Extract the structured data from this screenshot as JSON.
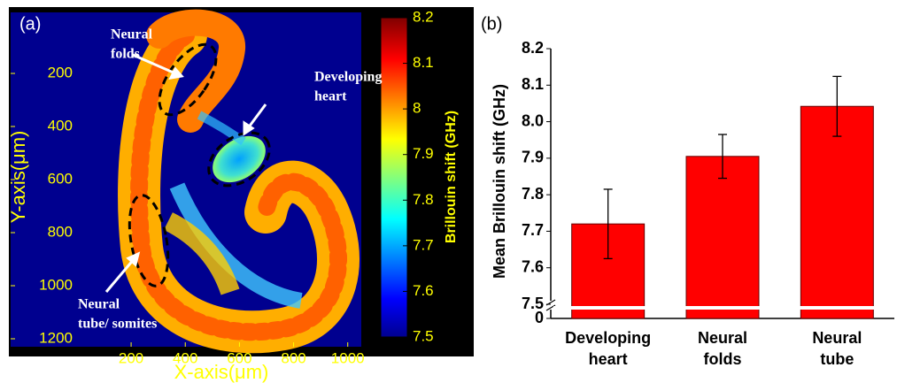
{
  "chart_data": [
    {
      "type": "heatmap",
      "panel_label": "(a)",
      "xlabel": "X-axis(μm)",
      "ylabel": "Y-axis(μm)",
      "xlim": [
        -245,
        1050
      ],
      "xticks": [
        200,
        400,
        600,
        800,
        1000
      ],
      "ylim": [
        1230,
        -30
      ],
      "yticks": [
        200,
        400,
        600,
        800,
        1000,
        1200
      ],
      "colorbar": {
        "label": "Brillouin shift (GHz)",
        "lim": [
          7.5,
          8.2
        ],
        "ticks": [
          7.5,
          7.6,
          7.7,
          7.8,
          7.9,
          8,
          8.1,
          8.2
        ]
      },
      "annotations": [
        {
          "lines": [
            "Neural",
            "folds"
          ]
        },
        {
          "lines": [
            "Developing",
            "heart"
          ]
        },
        {
          "lines": [
            "Neural",
            "tube/ somites"
          ]
        }
      ]
    },
    {
      "type": "bar",
      "panel_label": "(b)",
      "ylabel": "Mean Brillouin shift (GHz)",
      "categories": [
        [
          "Developing",
          "heart"
        ],
        [
          "Neural",
          "folds"
        ],
        [
          "Neural",
          "tube"
        ]
      ],
      "values": [
        7.72,
        7.905,
        8.042
      ],
      "errors": [
        0.095,
        0.06,
        0.082
      ],
      "color": "#ff0000",
      "ylim": [
        0,
        8.2
      ],
      "y_break": [
        0,
        7.5
      ],
      "yticks": [
        0,
        {
          "value": 7.5,
          "label": "7.5"
        },
        {
          "value": 7.6,
          "label": "7.6"
        },
        {
          "value": 7.7,
          "label": "7.7"
        },
        {
          "value": 7.8,
          "label": "7.8"
        },
        {
          "value": 7.9,
          "label": "7.9"
        },
        {
          "value": 8,
          "label": "8.0"
        },
        {
          "value": 8.1,
          "label": "8.1"
        },
        {
          "value": 8.2,
          "label": "8.2"
        }
      ]
    }
  ]
}
